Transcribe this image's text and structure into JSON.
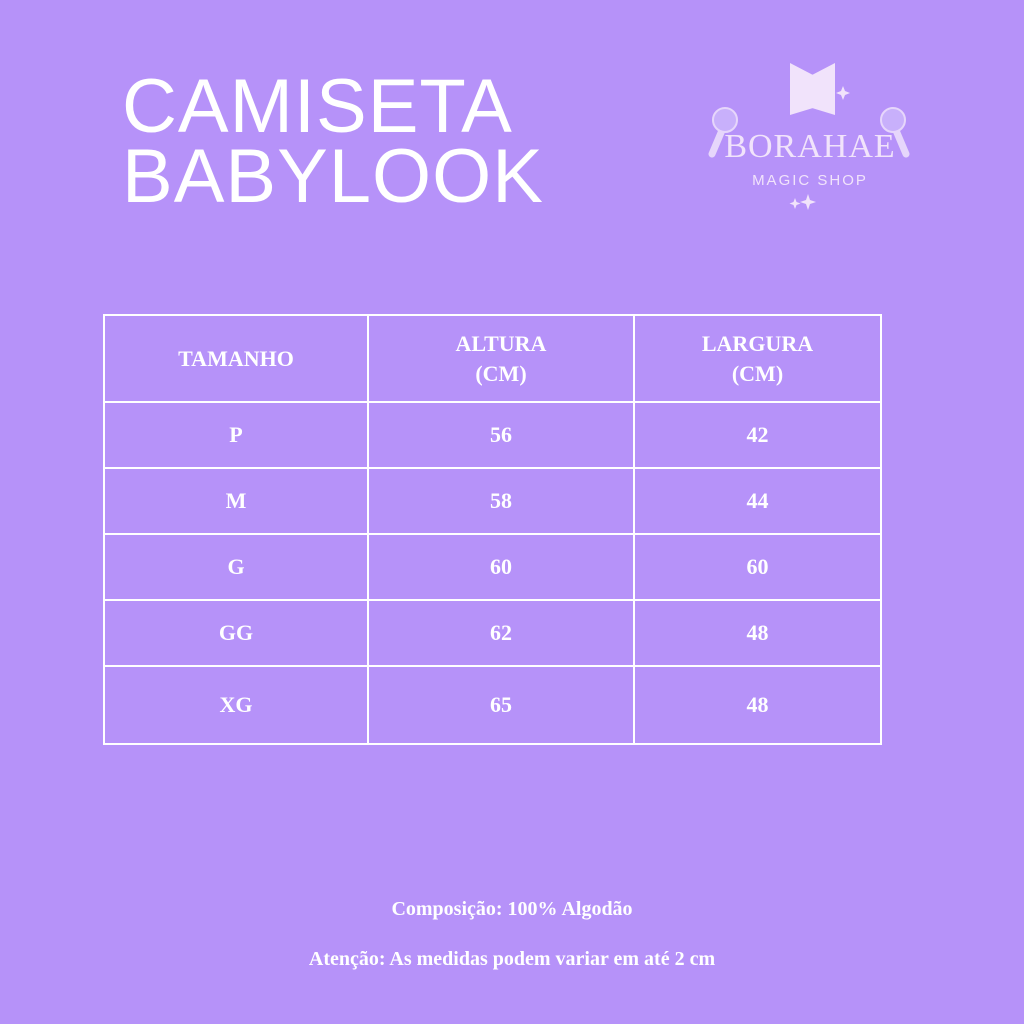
{
  "title": {
    "line1": "CAMISETA",
    "line2": "BABYLOOK"
  },
  "logo": {
    "brand": "BORAHAE",
    "subtitle": "MAGIC SHOP"
  },
  "table": {
    "headers": [
      "TAMANHO",
      "ALTURA",
      "(CM)",
      "LARGURA",
      "(CM)"
    ],
    "rows": [
      [
        "P",
        "56",
        "42"
      ],
      [
        "M",
        "58",
        "44"
      ],
      [
        "G",
        "60",
        "60"
      ],
      [
        "GG",
        "62",
        "48"
      ],
      [
        "XG",
        "65",
        "48"
      ]
    ]
  },
  "footer": {
    "composition": "Composição: 100% Algodão",
    "notice": "Atenção: As medidas podem variar em até 2 cm"
  },
  "colors": {
    "background": "#b692f9",
    "text": "#ffffff",
    "logo": "#f1e3fb"
  }
}
